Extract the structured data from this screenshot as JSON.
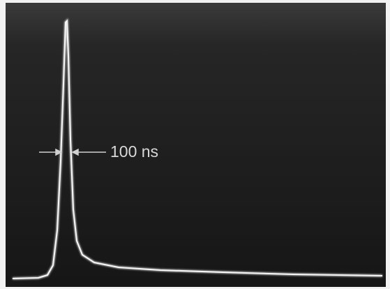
{
  "annotation": {
    "label": "100 ns"
  }
}
